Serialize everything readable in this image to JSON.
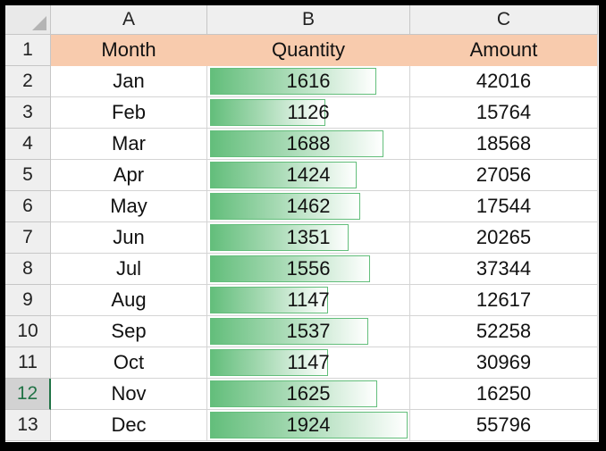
{
  "columns": [
    "A",
    "B",
    "C"
  ],
  "bar_color": "#63be7b",
  "header_fill": "#f8cbad",
  "selected_row": 12,
  "headers": {
    "month": "Month",
    "quantity": "Quantity",
    "amount": "Amount"
  },
  "rows": [
    {
      "row": "2",
      "month": "Jan",
      "quantity": 1616,
      "amount": 42016
    },
    {
      "row": "3",
      "month": "Feb",
      "quantity": 1126,
      "amount": 15764
    },
    {
      "row": "4",
      "month": "Mar",
      "quantity": 1688,
      "amount": 18568
    },
    {
      "row": "5",
      "month": "Apr",
      "quantity": 1424,
      "amount": 27056
    },
    {
      "row": "6",
      "month": "May",
      "quantity": 1462,
      "amount": 17544
    },
    {
      "row": "7",
      "month": "Jun",
      "quantity": 1351,
      "amount": 20265
    },
    {
      "row": "8",
      "month": "Jul",
      "quantity": 1556,
      "amount": 37344
    },
    {
      "row": "9",
      "month": "Aug",
      "quantity": 1147,
      "amount": 12617
    },
    {
      "row": "10",
      "month": "Sep",
      "quantity": 1537,
      "amount": 52258
    },
    {
      "row": "11",
      "month": "Oct",
      "quantity": 1147,
      "amount": 30969
    },
    {
      "row": "12",
      "month": "Nov",
      "quantity": 1625,
      "amount": 16250
    },
    {
      "row": "13",
      "month": "Dec",
      "quantity": 1924,
      "amount": 55796
    }
  ]
}
